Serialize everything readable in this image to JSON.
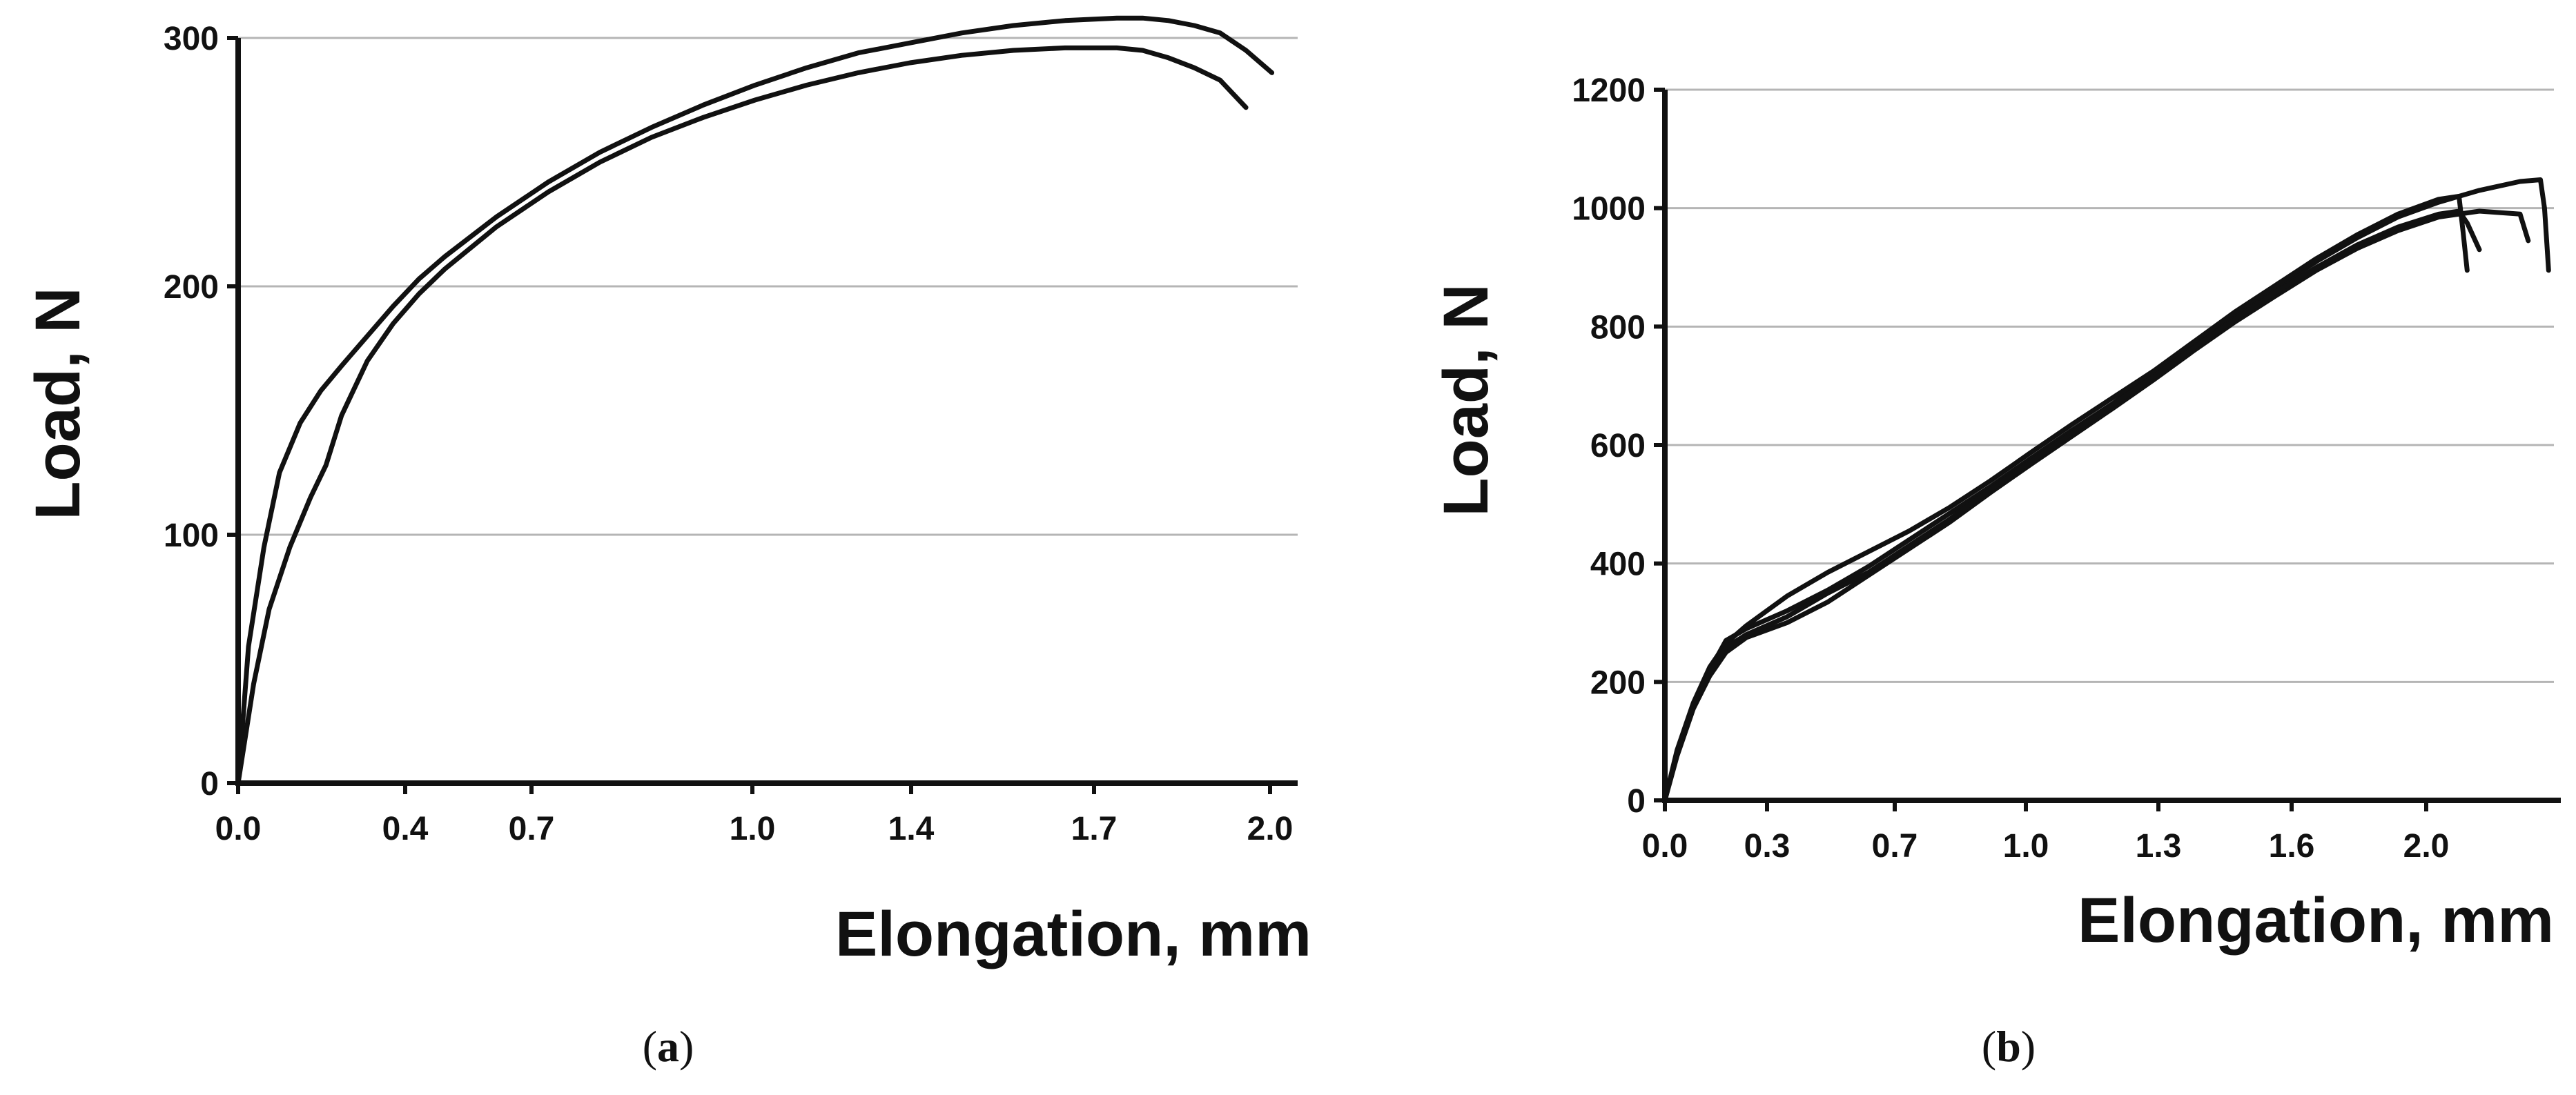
{
  "chart_data": [
    {
      "type": "line",
      "panel_label": "a",
      "title": "",
      "xlabel": "Elongation, mm",
      "ylabel": "Load, N",
      "xlim": [
        0,
        2.05
      ],
      "ylim": [
        0,
        300
      ],
      "x_tick_labels": [
        "0.0",
        "0.4",
        "0.7",
        "1.0",
        "1.4",
        "1.7",
        "2.0"
      ],
      "y_tick_labels": [
        "0",
        "100",
        "200",
        "300"
      ],
      "grid": "horizontal",
      "legend": "none",
      "line_color": "#111111",
      "series": [
        {
          "x": [
            0,
            0.02,
            0.05,
            0.08,
            0.12,
            0.16,
            0.2,
            0.25,
            0.3,
            0.35,
            0.4,
            0.5,
            0.6,
            0.7,
            0.8,
            0.9,
            1.0,
            1.1,
            1.2,
            1.3,
            1.4,
            1.5,
            1.6,
            1.7,
            1.75,
            1.8,
            1.85,
            1.9,
            1.95,
            2.0
          ],
          "y": [
            0,
            55,
            95,
            125,
            145,
            158,
            168,
            180,
            192,
            203,
            212,
            228,
            242,
            254,
            264,
            273,
            281,
            288,
            294,
            298,
            302,
            305,
            307,
            308,
            308,
            307,
            305,
            302,
            295,
            286
          ]
        },
        {
          "x": [
            0,
            0.03,
            0.06,
            0.1,
            0.14,
            0.17,
            0.2,
            0.25,
            0.3,
            0.35,
            0.4,
            0.5,
            0.6,
            0.7,
            0.8,
            0.9,
            1.0,
            1.1,
            1.2,
            1.3,
            1.4,
            1.5,
            1.6,
            1.7,
            1.75,
            1.8,
            1.85,
            1.9,
            1.95
          ],
          "y": [
            0,
            40,
            70,
            95,
            115,
            128,
            148,
            170,
            185,
            197,
            207,
            224,
            238,
            250,
            260,
            268,
            275,
            281,
            286,
            290,
            293,
            295,
            296,
            296,
            295,
            292,
            288,
            283,
            272
          ]
        }
      ]
    },
    {
      "type": "line",
      "panel_label": "b",
      "title": "",
      "xlabel": "Elongation, mm",
      "ylabel": "Load, N",
      "xlim": [
        0,
        2.2
      ],
      "ylim": [
        0,
        1200
      ],
      "x_tick_labels": [
        "0.0",
        "0.3",
        "0.7",
        "1.0",
        "1.3",
        "1.6",
        "2.0"
      ],
      "y_tick_labels": [
        "0",
        "200",
        "400",
        "600",
        "800",
        "1000",
        "1200"
      ],
      "grid": "horizontal",
      "legend": "none",
      "line_color": "#111111",
      "series": [
        {
          "x": [
            0,
            0.03,
            0.07,
            0.11,
            0.15,
            0.2,
            0.3,
            0.4,
            0.5,
            0.6,
            0.7,
            0.8,
            0.9,
            1.0,
            1.1,
            1.2,
            1.3,
            1.4,
            1.5,
            1.6,
            1.7,
            1.8,
            1.9,
            2.0,
            2.1,
            2.15,
            2.16,
            2.17
          ],
          "y": [
            0,
            80,
            160,
            220,
            270,
            290,
            320,
            355,
            395,
            440,
            485,
            530,
            578,
            625,
            670,
            720,
            770,
            820,
            865,
            910,
            950,
            985,
            1010,
            1030,
            1045,
            1048,
            1000,
            895
          ]
        },
        {
          "x": [
            0,
            0.03,
            0.07,
            0.11,
            0.15,
            0.2,
            0.3,
            0.4,
            0.5,
            0.6,
            0.7,
            0.8,
            0.9,
            1.0,
            1.1,
            1.2,
            1.3,
            1.4,
            1.5,
            1.6,
            1.7,
            1.8,
            1.9,
            1.95,
            1.96,
            1.97
          ],
          "y": [
            0,
            85,
            165,
            225,
            265,
            295,
            345,
            385,
            420,
            455,
            495,
            540,
            588,
            635,
            680,
            725,
            775,
            825,
            870,
            915,
            955,
            990,
            1015,
            1020,
            960,
            895
          ]
        },
        {
          "x": [
            0,
            0.03,
            0.07,
            0.11,
            0.15,
            0.2,
            0.3,
            0.4,
            0.5,
            0.6,
            0.7,
            0.8,
            0.9,
            1.0,
            1.1,
            1.2,
            1.3,
            1.4,
            1.5,
            1.6,
            1.7,
            1.8,
            1.9,
            2.0,
            2.1,
            2.12
          ],
          "y": [
            0,
            75,
            155,
            210,
            250,
            275,
            300,
            335,
            380,
            425,
            470,
            520,
            568,
            615,
            662,
            710,
            760,
            808,
            852,
            895,
            932,
            962,
            985,
            995,
            990,
            945
          ]
        },
        {
          "x": [
            0,
            0.03,
            0.07,
            0.11,
            0.15,
            0.2,
            0.3,
            0.4,
            0.5,
            0.6,
            0.7,
            0.8,
            0.9,
            1.0,
            1.1,
            1.2,
            1.3,
            1.4,
            1.5,
            1.6,
            1.7,
            1.8,
            1.9,
            1.95,
            1.97,
            2.0
          ],
          "y": [
            0,
            80,
            160,
            215,
            258,
            280,
            310,
            350,
            385,
            430,
            475,
            525,
            572,
            620,
            668,
            715,
            765,
            812,
            858,
            900,
            938,
            968,
            990,
            995,
            975,
            930
          ]
        }
      ]
    }
  ],
  "captions": [
    "a",
    "b"
  ]
}
